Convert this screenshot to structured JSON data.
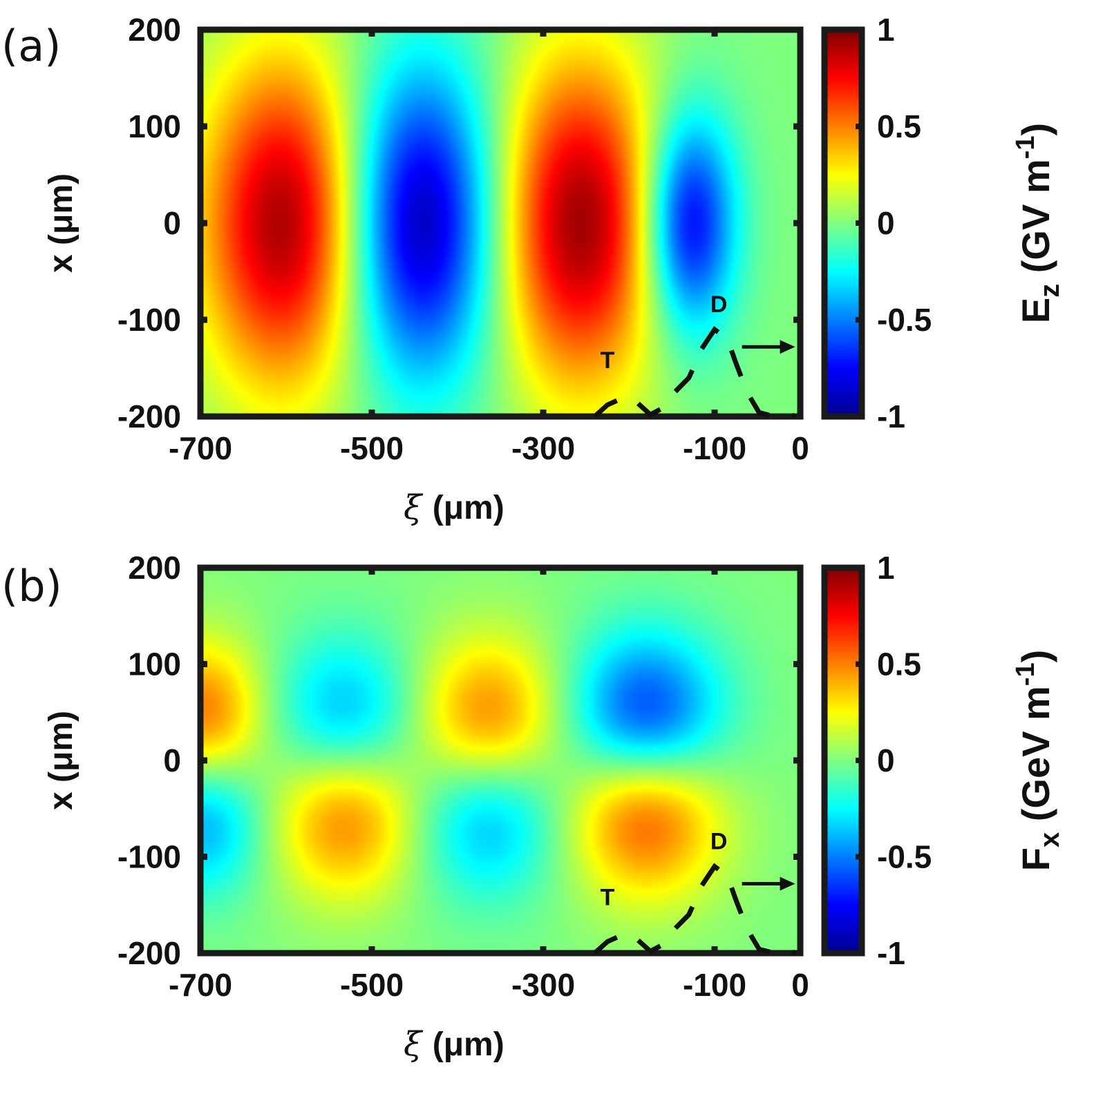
{
  "chart_data": [
    {
      "type": "heatmap",
      "panel_label": "(a)",
      "quantity": "E_z",
      "colorbar_label": {
        "symbol": "E",
        "subscript": "z",
        "unit_prefix": "(GV m",
        "unit_exponent": "-1",
        "unit_suffix": ")"
      },
      "xlabel": {
        "symbol": "ξ",
        "unit": "(μm)"
      },
      "ylabel": {
        "symbol": "x",
        "unit": "(μm)"
      },
      "xlim": [
        -700,
        0
      ],
      "ylim": [
        -200,
        200
      ],
      "clim": [
        -1,
        1
      ],
      "xticks": [
        -700,
        -500,
        -300,
        -100,
        0
      ],
      "xtick_labels": [
        "-700",
        "-500",
        "-300",
        "-100",
        "0"
      ],
      "yticks": [
        -200,
        -100,
        0,
        100,
        200
      ],
      "ytick_labels": [
        "-200",
        "-100",
        "0",
        "100",
        "200"
      ],
      "cticks": [
        -1,
        -0.5,
        0,
        0.5,
        1
      ],
      "ctick_labels": [
        "-1",
        "-0.5",
        "0",
        "0.5",
        "1"
      ],
      "lobes": [
        {
          "xi": -600,
          "x": 0,
          "value": 0.95,
          "sigma_xi": 70,
          "sigma_x": 120
        },
        {
          "xi": -445,
          "x": 0,
          "value": -0.95,
          "sigma_xi": 65,
          "sigma_x": 115
        },
        {
          "xi": -258,
          "x": 0,
          "value": 0.95,
          "sigma_xi": 68,
          "sigma_x": 120
        },
        {
          "xi": -130,
          "x": 0,
          "value": -0.85,
          "sigma_xi": 38,
          "sigma_x": 80
        }
      ],
      "annotations": [
        {
          "text": "T",
          "xi": -225,
          "x": -150
        },
        {
          "text": "D",
          "xi": -95,
          "x": -92
        }
      ]
    },
    {
      "type": "heatmap",
      "panel_label": "(b)",
      "quantity": "F_x",
      "colorbar_label": {
        "symbol": "F",
        "subscript": "x",
        "unit_prefix": "(GeV m",
        "unit_exponent": "-1",
        "unit_suffix": ")"
      },
      "xlabel": {
        "symbol": "ξ",
        "unit": "(μm)"
      },
      "ylabel": {
        "symbol": "x",
        "unit": "(μm)"
      },
      "xlim": [
        -700,
        0
      ],
      "ylim": [
        -200,
        200
      ],
      "clim": [
        -1,
        1
      ],
      "xticks": [
        -700,
        -500,
        -300,
        -100,
        0
      ],
      "xtick_labels": [
        "-700",
        "-500",
        "-300",
        "-100",
        "0"
      ],
      "yticks": [
        -200,
        -100,
        0,
        100,
        200
      ],
      "ytick_labels": [
        "-200",
        "-100",
        "0",
        "100",
        "200"
      ],
      "cticks": [
        -1,
        -0.5,
        0,
        0.5,
        1
      ],
      "ctick_labels": [
        "-1",
        "-0.5",
        "0",
        "0.5",
        "1"
      ],
      "lobes": [
        {
          "xi": -695,
          "x": 45,
          "value": 0.55,
          "sigma_xi": 48,
          "sigma_x": 55
        },
        {
          "xi": -695,
          "x": -60,
          "value": -0.45,
          "sigma_xi": 48,
          "sigma_x": 55
        },
        {
          "xi": -530,
          "x": 40,
          "value": -0.45,
          "sigma_xi": 60,
          "sigma_x": 60
        },
        {
          "xi": -530,
          "x": -55,
          "value": 0.55,
          "sigma_xi": 60,
          "sigma_x": 60
        },
        {
          "xi": -365,
          "x": 40,
          "value": 0.55,
          "sigma_xi": 60,
          "sigma_x": 60
        },
        {
          "xi": -365,
          "x": -55,
          "value": -0.45,
          "sigma_xi": 60,
          "sigma_x": 60
        },
        {
          "xi": -180,
          "x": 40,
          "value": -0.75,
          "sigma_xi": 62,
          "sigma_x": 62
        },
        {
          "xi": -180,
          "x": -50,
          "value": 0.7,
          "sigma_xi": 62,
          "sigma_x": 62
        }
      ],
      "annotations": [
        {
          "text": "T",
          "xi": -225,
          "x": -150
        },
        {
          "text": "D",
          "xi": -95,
          "x": -92
        }
      ]
    }
  ]
}
